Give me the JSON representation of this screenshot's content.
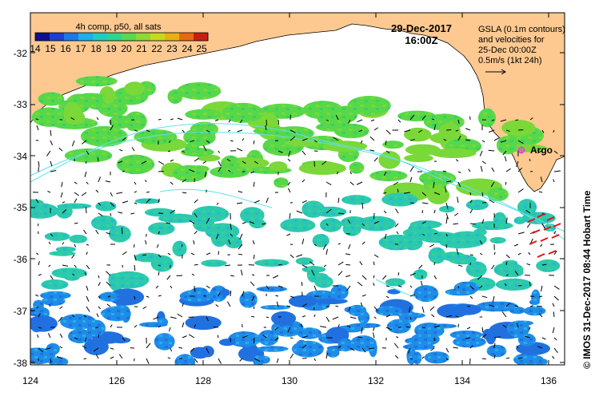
{
  "map": {
    "legend_title": "4h comp, p50, all sats",
    "colorbar_ticks": [
      "14",
      "15",
      "16",
      "17",
      "18",
      "19",
      "20",
      "21",
      "22",
      "23",
      "24",
      "25"
    ],
    "colorbar_colors": [
      "#10108c",
      "#1f3fd0",
      "#1e78e8",
      "#1eaee8",
      "#22ccc0",
      "#30d48c",
      "#58d850",
      "#8ed832",
      "#c8d81e",
      "#e8b014",
      "#e86a10",
      "#c81e10"
    ],
    "date": "29-Dec-2017",
    "time": "16:00Z",
    "info_lines": [
      "GSLA (0.1m contours)",
      "and velocities for",
      "25-Dec 00:00Z",
      "0.5m/s (1kt 24h)"
    ],
    "argo_label": "Argo",
    "side_text": "© IMOS 31-Dec-2017 08:44 Hobart Time",
    "x_ticks": [
      "124",
      "126",
      "128",
      "130",
      "132",
      "134",
      "136"
    ],
    "y_ticks": [
      "-32",
      "-33",
      "-34",
      "-35",
      "-36",
      "-37",
      "-38"
    ],
    "colors": {
      "land": "#fdc990",
      "contour": "#5ee0ec",
      "argo": "#e040e0",
      "warm_arrow": "#e81010"
    }
  }
}
